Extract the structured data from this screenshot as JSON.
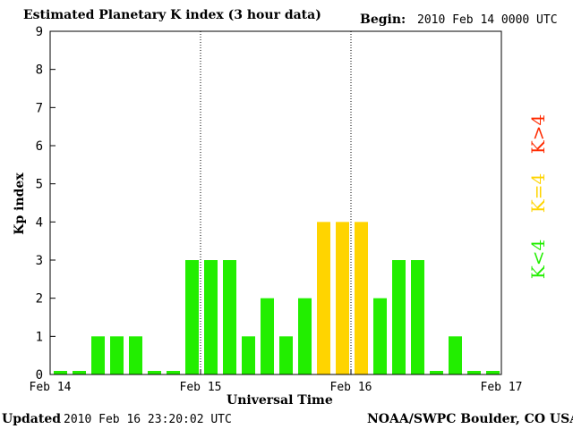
{
  "header": {
    "title": "Estimated Planetary K index (3 hour data)",
    "begin_label": "Begin:",
    "begin_value": "2010 Feb 14 0000 UTC"
  },
  "footer": {
    "updated_label": "Updated",
    "updated_value": "2010 Feb 16 23:20:02 UTC",
    "source": "NOAA/SWPC Boulder, CO USA"
  },
  "legend": [
    {
      "label": "K>4",
      "color": "#ff2a00"
    },
    {
      "label": "K=4",
      "color": "#ffd400"
    },
    {
      "label": "K<4",
      "color": "#22ee00"
    }
  ],
  "colors": {
    "low": "#22ee00",
    "equal": "#ffd400",
    "high": "#ff2a00"
  },
  "chart_data": {
    "type": "bar",
    "xlabel": "Universal Time",
    "ylabel": "Kp index",
    "ylim": [
      0,
      9
    ],
    "yticks": [
      "0",
      "1",
      "2",
      "3",
      "4",
      "5",
      "6",
      "7",
      "8",
      "9"
    ],
    "xticks": [
      "Feb 14",
      "Feb 15",
      "Feb 16",
      "Feb 17"
    ],
    "day_separators": [
      "Feb 15",
      "Feb 16"
    ],
    "grid": false,
    "bar_interval_hours": 3,
    "values": [
      0,
      0,
      1,
      1,
      1,
      0,
      0,
      3,
      3,
      3,
      1,
      2,
      1,
      2,
      4,
      4,
      4,
      2,
      3,
      3,
      0,
      1,
      0,
      0
    ]
  }
}
